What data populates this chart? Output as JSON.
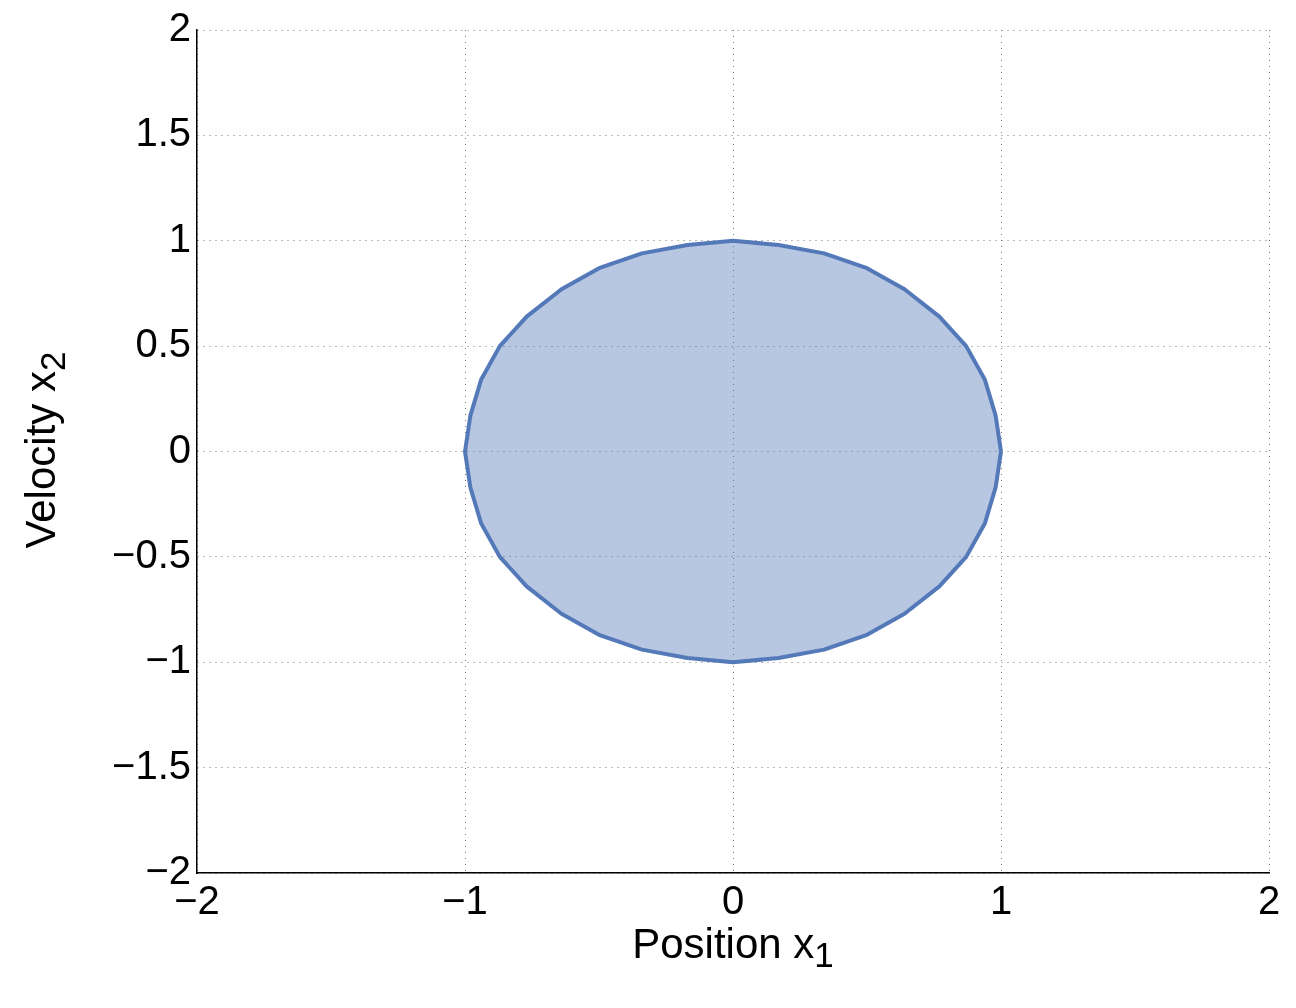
{
  "chart_data": {
    "type": "area",
    "xlabel": "Position x$_{1}$",
    "ylabel": "Velocity x$_{2}$",
    "x": [
      1,
      0.98,
      0.94,
      0.87,
      0.77,
      0.64,
      0.5,
      0.34,
      0.17,
      0,
      -0.17,
      -0.34,
      -0.5,
      -0.64,
      -0.77,
      -0.87,
      -0.94,
      -0.98,
      -1,
      -0.98,
      -0.94,
      -0.87,
      -0.77,
      -0.64,
      -0.5,
      -0.34,
      -0.17,
      0,
      0.17,
      0.34,
      0.5,
      0.64,
      0.77,
      0.87,
      0.94,
      0.98,
      1
    ],
    "series": [
      {
        "color": "#5479b9",
        "values": [
          0,
          0.17,
          0.34,
          0.5,
          0.64,
          0.77,
          0.87,
          0.94,
          0.98,
          1,
          0.98,
          0.94,
          0.87,
          0.77,
          0.64,
          0.5,
          0.34,
          0.17,
          0,
          -0.17,
          -0.34,
          -0.5,
          -0.64,
          -0.77,
          -0.87,
          -0.94,
          -0.98,
          -1,
          -0.98,
          -0.94,
          -0.87,
          -0.77,
          -0.64,
          -0.5,
          -0.34,
          -0.17,
          0
        ]
      }
    ],
    "xlim": [
      -2,
      2
    ],
    "ylim": [
      -2,
      2
    ],
    "xticks": [
      {
        "value": -2,
        "label": "−2"
      },
      {
        "value": -1,
        "label": "−1"
      },
      0,
      1,
      2
    ],
    "yticks": [
      {
        "value": -2,
        "label": "−2"
      },
      {
        "value": -1.5,
        "label": "−1.5"
      },
      {
        "value": -1,
        "label": "−1"
      },
      {
        "value": -0.5,
        "label": "−0.5"
      },
      0,
      0.5,
      1,
      1.5,
      2
    ],
    "grid": true,
    "legend": false
  }
}
